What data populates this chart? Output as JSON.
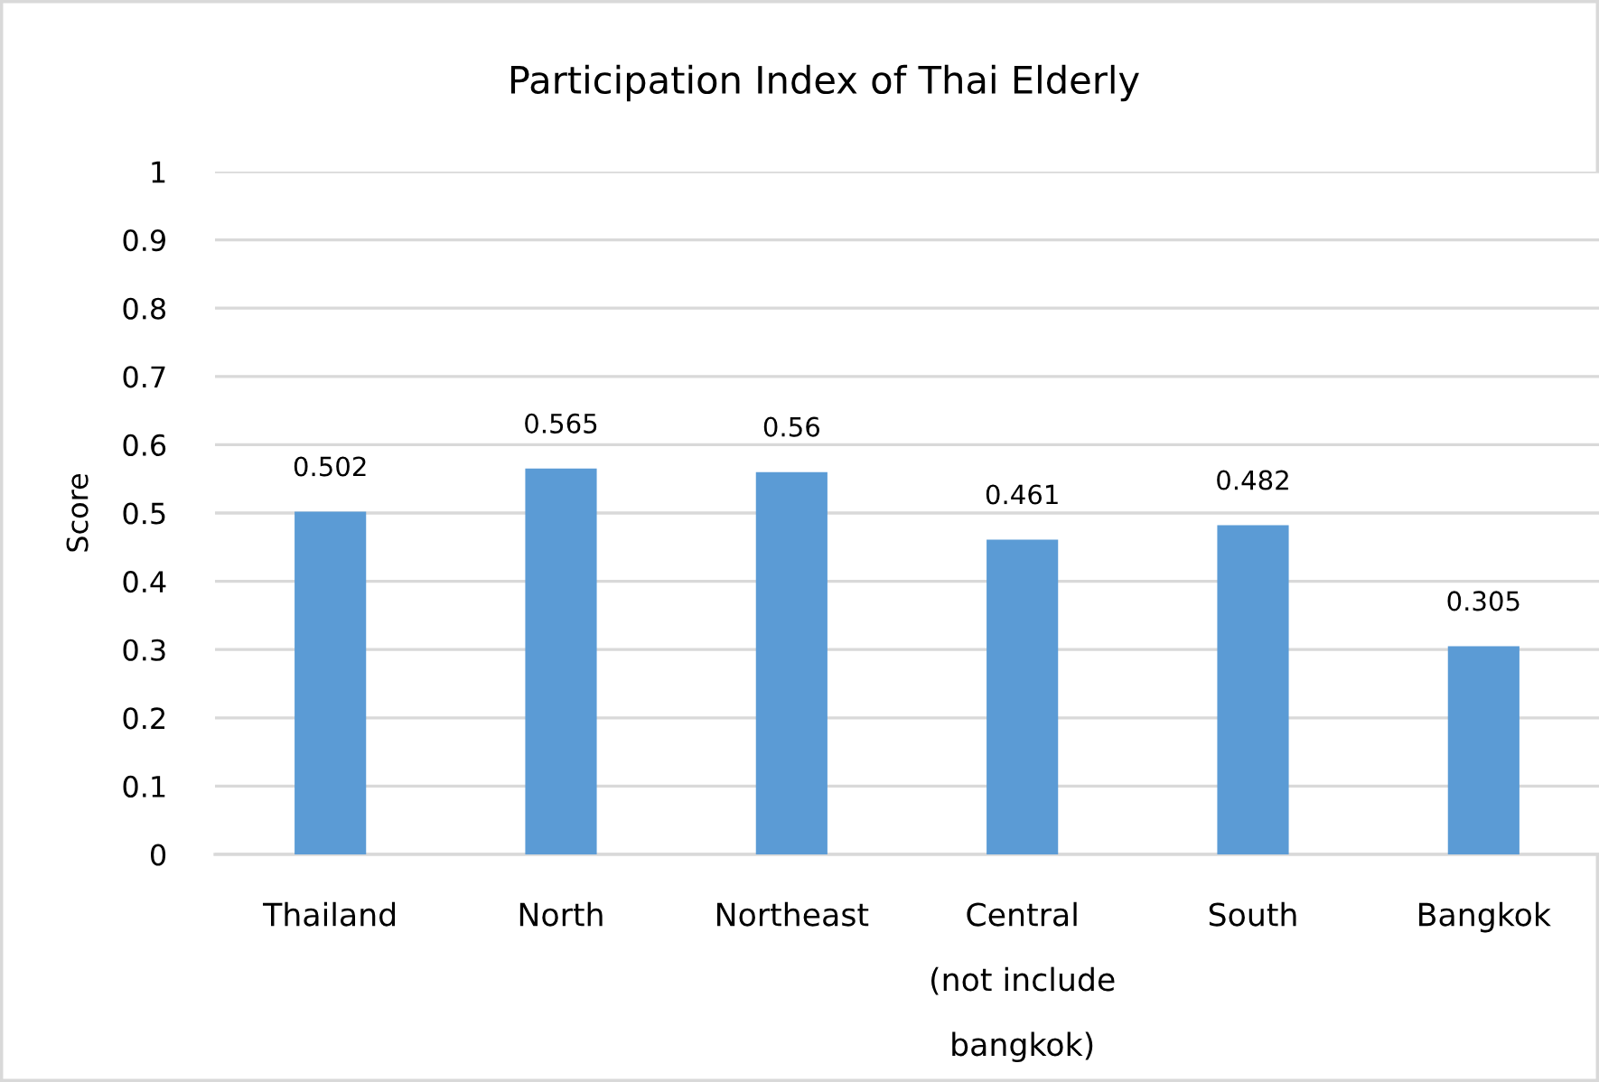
{
  "chart_data": {
    "type": "bar",
    "title": "Participation Index of Thai Elderly",
    "ylabel": "Score",
    "categories": [
      "Thailand",
      "North",
      "Northeast",
      "Central\n(not include\nbangkok)",
      "South",
      "Bangkok"
    ],
    "values": [
      0.502,
      0.565,
      0.56,
      0.461,
      0.482,
      0.305
    ],
    "color": "#5b9bd5",
    "ylim": [
      0,
      1
    ],
    "yticks": [
      0,
      0.1,
      0.2,
      0.3,
      0.4,
      0.5,
      0.6,
      0.7,
      0.8,
      0.9,
      1
    ],
    "grid": "y",
    "data_labels": true
  }
}
